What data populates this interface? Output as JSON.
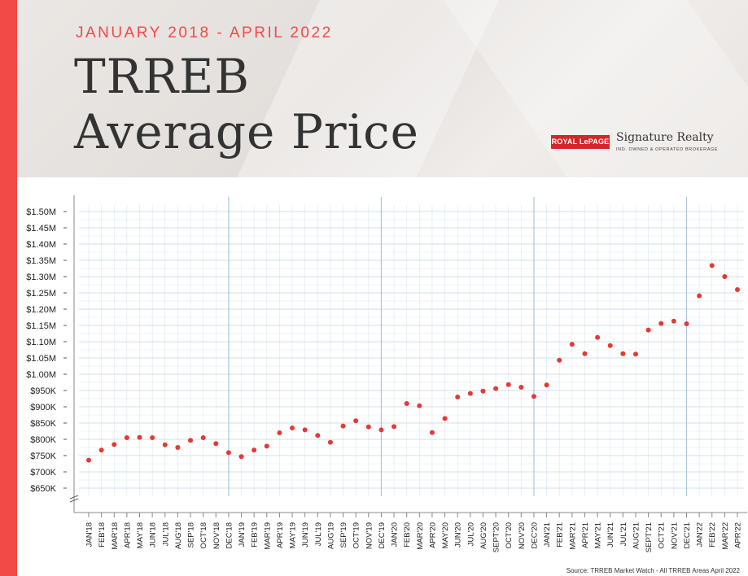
{
  "header": {
    "subtitle": "JANUARY 2018 - APRIL 2022",
    "title_line1": "TRREB",
    "title_line2": "Average Price"
  },
  "logo": {
    "brand": "ROYAL LePAGE",
    "name": "Signature Realty",
    "tagline": "IND. OWNED & OPERATED BROKERAGE"
  },
  "source": "Source: TRREB Market Watch - All TRREB Areas April 2022",
  "colors": {
    "accent": "#f24a47",
    "point": "#e53935",
    "grid": "#cfe0ee"
  },
  "chart_data": {
    "type": "scatter",
    "y_ticks": [
      "$650K",
      "$700K",
      "$750K",
      "$800K",
      "$850K",
      "$900K",
      "$950K",
      "$1.00M",
      "$1.05M",
      "$1.10M",
      "$1.15M",
      "$1.20M",
      "$1.25M",
      "$1.30M",
      "$1.35M",
      "$1.40M",
      "$1.45M",
      "$1.50M"
    ],
    "ylim": [
      650000,
      1500000
    ],
    "grid": true,
    "categories": [
      "JAN'18",
      "FEB'18",
      "MAR'18",
      "APR'18",
      "MAY'18",
      "JUN'18",
      "JUL'18",
      "AUG'18",
      "SEP'18",
      "OCT'18",
      "NOV'18",
      "DEC'18",
      "JAN'19",
      "FEB'19",
      "MAR'19",
      "APR'19",
      "MAY'19",
      "JUN'19",
      "JUL'19",
      "AUG'19",
      "SEP'19",
      "OCT'19",
      "NOV'19",
      "DEC'19",
      "JAN'20",
      "FEB'20",
      "MAR'20",
      "APR'20",
      "MAY'20",
      "JUN'20",
      "JUL'20",
      "AUG'20",
      "SEPT'20",
      "OCT'20",
      "NOV'20",
      "DEC'20",
      "JAN'21",
      "FEB'21",
      "MAR'21",
      "APR'21",
      "MAY'21",
      "JUN'21",
      "JUL'21",
      "AUG'21",
      "SEPT'21",
      "OCT'21",
      "NOV'21",
      "DEC'21",
      "JAN'22",
      "FEB'22",
      "MAR'22",
      "APR'22"
    ],
    "values": [
      736000,
      767000,
      784000,
      805000,
      806000,
      805000,
      783000,
      775000,
      797000,
      805000,
      787000,
      759000,
      747000,
      767000,
      779000,
      820000,
      835000,
      829000,
      812000,
      791000,
      841000,
      857000,
      838000,
      829000,
      839000,
      910000,
      903000,
      821000,
      864000,
      930000,
      941000,
      948000,
      956000,
      968000,
      960000,
      932000,
      967000,
      1043000,
      1092000,
      1063000,
      1113000,
      1088000,
      1063000,
      1062000,
      1136000,
      1156000,
      1163000,
      1155000,
      1241000,
      1334000,
      1300000,
      1260000
    ],
    "year_dividers_after": [
      "DEC'18",
      "DEC'19",
      "DEC'20",
      "DEC'21"
    ]
  }
}
